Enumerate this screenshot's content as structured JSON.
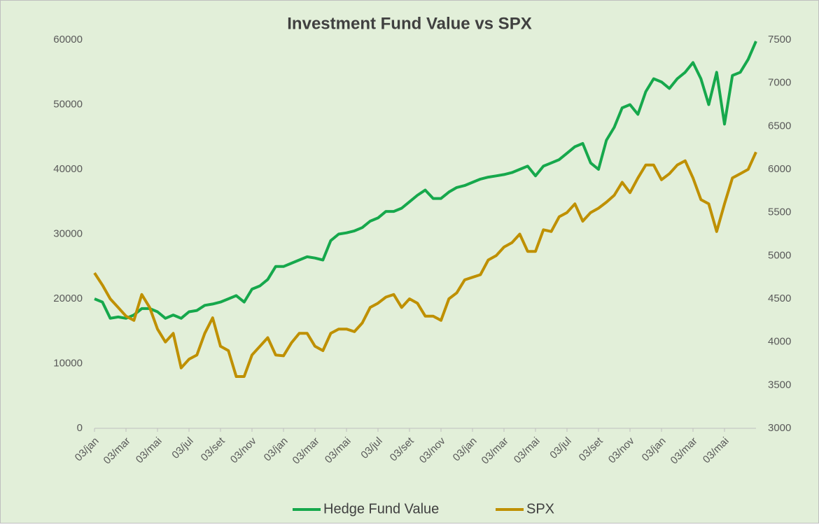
{
  "chart_data": {
    "type": "line",
    "title": "Investment Fund Value vs SPX",
    "categories": [
      "03/jan",
      null,
      null,
      null,
      "03/mar",
      null,
      null,
      null,
      "03/mai",
      null,
      null,
      null,
      "03/jul",
      null,
      null,
      null,
      "03/set",
      null,
      null,
      null,
      "03/nov",
      null,
      null,
      null,
      "03/jan",
      null,
      null,
      null,
      "03/mar",
      null,
      null,
      null,
      "03/mai",
      null,
      null,
      null,
      "03/jul",
      null,
      null,
      null,
      "03/set",
      null,
      null,
      null,
      "03/nov",
      null,
      null,
      null,
      "03/jan",
      null,
      null,
      null,
      "03/mar",
      null,
      null,
      null,
      "03/mai",
      null,
      null,
      null,
      "03/jul",
      null,
      null,
      null,
      "03/set",
      null,
      null,
      null,
      "03/nov",
      null,
      null,
      null,
      "03/jan",
      null,
      null,
      null,
      "03/mar",
      null,
      null,
      null,
      "03/mai",
      null,
      null,
      null,
      null
    ],
    "series": [
      {
        "name": "Hedge Fund Value",
        "color": "#16a84c",
        "values": [
          20000,
          19500,
          17000,
          17200,
          17000,
          17500,
          18500,
          18500,
          18000,
          17000,
          17500,
          17000,
          18000,
          18200,
          19000,
          19200,
          19500,
          20000,
          20500,
          19500,
          21500,
          22000,
          23000,
          25000,
          25000,
          25500,
          26000,
          26500,
          26300,
          26000,
          29000,
          30000,
          30200,
          30500,
          31000,
          32000,
          32500,
          33500,
          33500,
          34000,
          35000,
          36000,
          36800,
          35500,
          35500,
          36500,
          37200,
          37500,
          38000,
          38500,
          38800,
          39000,
          39200,
          39500,
          40000,
          40500,
          39000,
          40500,
          41000,
          41500,
          42500,
          43500,
          44000,
          41000,
          40000,
          44500,
          46500,
          49500,
          50000,
          48500,
          52000,
          54000,
          53500,
          52500,
          54000,
          55000,
          56500,
          54000,
          50000,
          55000,
          47000,
          54500,
          55000,
          57000,
          59800
        ]
      },
      {
        "name": "SPX",
        "color": "#bf9000",
        "axis": "y2",
        "values": [
          4800,
          4660,
          4500,
          4400,
          4300,
          4250,
          4550,
          4400,
          4150,
          4000,
          4100,
          3700,
          3800,
          3850,
          4100,
          4280,
          3950,
          3900,
          3600,
          3600,
          3850,
          3950,
          4050,
          3850,
          3840,
          3990,
          4100,
          4100,
          3950,
          3900,
          4100,
          4150,
          4150,
          4120,
          4220,
          4400,
          4450,
          4520,
          4550,
          4400,
          4500,
          4450,
          4300,
          4300,
          4250,
          4500,
          4570,
          4720,
          4750,
          4780,
          4950,
          5000,
          5100,
          5150,
          5250,
          5050,
          5050,
          5300,
          5280,
          5450,
          5500,
          5600,
          5400,
          5500,
          5550,
          5620,
          5700,
          5850,
          5730,
          5900,
          6050,
          6050,
          5880,
          5950,
          6050,
          6100,
          5900,
          5650,
          5600,
          5280,
          5600,
          5900,
          5950,
          6000,
          6200
        ]
      }
    ],
    "ylim": [
      0,
      60000
    ],
    "yticks": [
      0,
      10000,
      20000,
      30000,
      40000,
      50000,
      60000
    ],
    "y2lim": [
      3000,
      7500
    ],
    "y2ticks": [
      3000,
      3500,
      4000,
      4500,
      5000,
      5500,
      6000,
      6500,
      7000,
      7500
    ],
    "legend": "bottom"
  }
}
